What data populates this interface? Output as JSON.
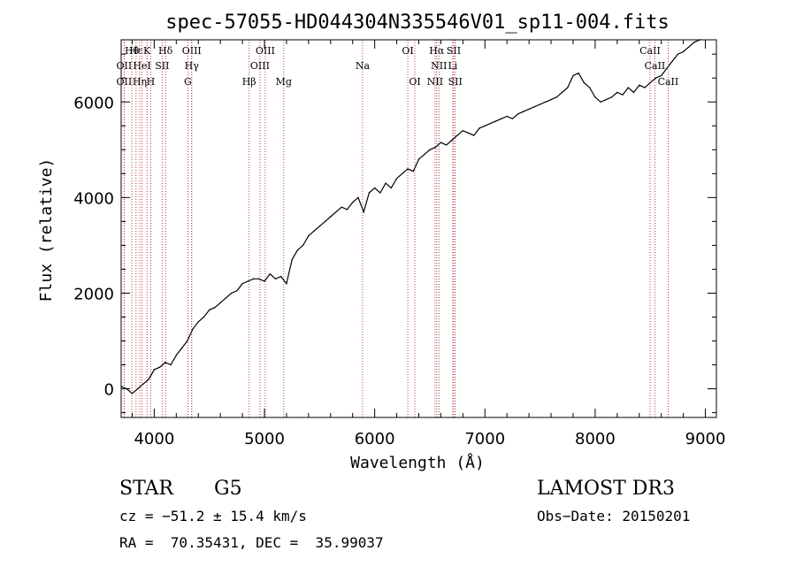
{
  "chart_data": {
    "type": "line",
    "title": "spec-57055-HD044304N335546V01_sp11-004.fits",
    "xlabel": "Wavelength (Å)",
    "ylabel": "Flux (relative)",
    "xlim": [
      3700,
      9100
    ],
    "ylim": [
      -600,
      7300
    ],
    "x_ticks": [
      4000,
      5000,
      6000,
      7000,
      8000,
      9000
    ],
    "y_ticks": [
      0,
      2000,
      4000,
      6000
    ],
    "grid": false,
    "line_color": "#000000",
    "marker_color": "#aa1111",
    "series": [
      {
        "x": [
          3700,
          3750,
          3800,
          3850,
          3900,
          3950,
          4000,
          4050,
          4100,
          4150,
          4200,
          4250,
          4300,
          4350,
          4400,
          4450,
          4500,
          4550,
          4600,
          4650,
          4700,
          4750,
          4800,
          4850,
          4900,
          4950,
          5000,
          5050,
          5100,
          5150,
          5200,
          5250,
          5300,
          5350,
          5400,
          5450,
          5500,
          5550,
          5600,
          5650,
          5700,
          5750,
          5800,
          5850,
          5900,
          5950,
          6000,
          6050,
          6100,
          6150,
          6200,
          6250,
          6300,
          6350,
          6400,
          6450,
          6500,
          6550,
          6600,
          6650,
          6700,
          6750,
          6800,
          6850,
          6900,
          6950,
          7000,
          7050,
          7100,
          7150,
          7200,
          7250,
          7300,
          7350,
          7400,
          7450,
          7500,
          7550,
          7600,
          7650,
          7700,
          7750,
          7800,
          7850,
          7900,
          7950,
          8000,
          8050,
          8100,
          8150,
          8200,
          8250,
          8300,
          8350,
          8400,
          8450,
          8500,
          8550,
          8600,
          8650,
          8700,
          8750,
          8800,
          8850,
          8900,
          8950
        ],
        "y": [
          50,
          0,
          -100,
          0,
          100,
          200,
          400,
          450,
          550,
          500,
          700,
          850,
          1000,
          1250,
          1400,
          1500,
          1650,
          1700,
          1800,
          1900,
          2000,
          2050,
          2200,
          2250,
          2300,
          2300,
          2250,
          2400,
          2300,
          2350,
          2200,
          2700,
          2900,
          3000,
          3200,
          3300,
          3400,
          3500,
          3600,
          3700,
          3800,
          3750,
          3900,
          4000,
          3700,
          4100,
          4200,
          4100,
          4300,
          4200,
          4400,
          4500,
          4600,
          4550,
          4800,
          4900,
          5000,
          5050,
          5150,
          5100,
          5200,
          5300,
          5400,
          5350,
          5300,
          5450,
          5500,
          5550,
          5600,
          5650,
          5700,
          5650,
          5750,
          5800,
          5850,
          5900,
          5950,
          6000,
          6050,
          6100,
          6200,
          6300,
          6550,
          6600,
          6400,
          6300,
          6100,
          6000,
          6050,
          6100,
          6200,
          6150,
          6300,
          6200,
          6350,
          6300,
          6400,
          6500,
          6550,
          6700,
          6850,
          7000,
          7050,
          7150,
          7250,
          7300
        ]
      }
    ],
    "line_markers": [
      {
        "x": 3797,
        "row": 0,
        "label": "Hθ"
      },
      {
        "x": 3835,
        "row": 0,
        "label": "Hε"
      },
      {
        "x": 3934,
        "row": 0,
        "label": "K"
      },
      {
        "x": 4102,
        "row": 0,
        "label": "Hδ"
      },
      {
        "x": 4340,
        "row": 0,
        "label": "OIII"
      },
      {
        "x": 5007,
        "row": 0,
        "label": "OIII"
      },
      {
        "x": 6300,
        "row": 0,
        "label": "OI"
      },
      {
        "x": 6563,
        "row": 0,
        "label": "Hα"
      },
      {
        "x": 6717,
        "row": 0,
        "label": "SII"
      },
      {
        "x": 8498,
        "row": 0,
        "label": "CaII"
      },
      {
        "x": 3727,
        "row": 1,
        "label": "OII"
      },
      {
        "x": 3889,
        "row": 1,
        "label": "HeI"
      },
      {
        "x": 4072,
        "row": 1,
        "label": "SII"
      },
      {
        "x": 4340,
        "row": 1,
        "label": "Hγ"
      },
      {
        "x": 4959,
        "row": 1,
        "label": "OIII"
      },
      {
        "x": 5890,
        "row": 1,
        "label": "Na"
      },
      {
        "x": 6583,
        "row": 1,
        "label": "NII"
      },
      {
        "x": 6708,
        "row": 1,
        "label": "Li"
      },
      {
        "x": 8542,
        "row": 1,
        "label": "CaII"
      },
      {
        "x": 3727,
        "row": 2,
        "label": "OII"
      },
      {
        "x": 3868,
        "row": 2,
        "label": "Hη"
      },
      {
        "x": 3968,
        "row": 2,
        "label": "H"
      },
      {
        "x": 4305,
        "row": 2,
        "label": "G"
      },
      {
        "x": 4861,
        "row": 2,
        "label": "Hβ"
      },
      {
        "x": 5175,
        "row": 2,
        "label": "Mg"
      },
      {
        "x": 6364,
        "row": 2,
        "label": "OI"
      },
      {
        "x": 6548,
        "row": 2,
        "label": "NII"
      },
      {
        "x": 6731,
        "row": 2,
        "label": "SII"
      },
      {
        "x": 8662,
        "row": 2,
        "label": "CaII"
      }
    ]
  },
  "info": {
    "class_label": "STAR",
    "subclass": "G5",
    "survey": "LAMOST DR3",
    "cz": "cz = −51.2 ± 15.4 km/s",
    "obs_date": "Obs−Date: 20150201",
    "radec": "RA =  70.35431, DEC =  35.99037"
  }
}
